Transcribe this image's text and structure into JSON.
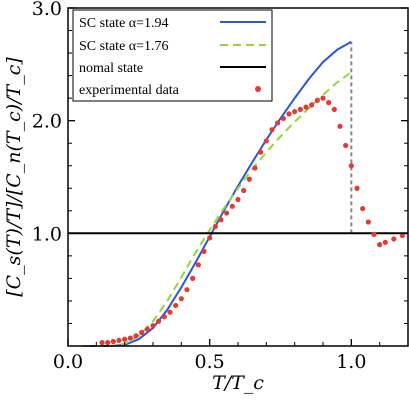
{
  "chart_data": {
    "type": "line",
    "xlabel": "T/T_c",
    "ylabel": "[C_s(T)/T]/[C_n(T_c)/T_c]",
    "xlim": [
      0.0,
      1.2
    ],
    "ylim": [
      0.0,
      3.0
    ],
    "x_ticks": [
      "0.0",
      "0.5",
      "1.0"
    ],
    "y_ticks": [
      "1.0",
      "2.0",
      "3.0"
    ],
    "legend_position": "top-left",
    "series": [
      {
        "name": "SC state α=1.94",
        "style": "solid",
        "color": "#2b55e0",
        "x": [
          0.05,
          0.15,
          0.2,
          0.25,
          0.3,
          0.35,
          0.4,
          0.45,
          0.5,
          0.55,
          0.6,
          0.65,
          0.7,
          0.75,
          0.8,
          0.85,
          0.9,
          0.95,
          1.0
        ],
        "y": [
          0.0,
          0.0,
          0.01,
          0.06,
          0.16,
          0.32,
          0.52,
          0.74,
          0.97,
          1.2,
          1.42,
          1.63,
          1.83,
          2.02,
          2.2,
          2.37,
          2.52,
          2.63,
          2.7
        ]
      },
      {
        "name": "SC state α=1.76",
        "style": "dashed",
        "color": "#8fd83a",
        "x": [
          0.05,
          0.15,
          0.2,
          0.25,
          0.3,
          0.35,
          0.4,
          0.45,
          0.5,
          0.55,
          0.6,
          0.65,
          0.7,
          0.75,
          0.8,
          0.85,
          0.9,
          0.95,
          1.0
        ],
        "y": [
          0.0,
          0.0,
          0.02,
          0.09,
          0.22,
          0.4,
          0.61,
          0.83,
          1.03,
          1.22,
          1.4,
          1.57,
          1.72,
          1.86,
          1.99,
          2.11,
          2.23,
          2.34,
          2.43
        ]
      },
      {
        "name": "nomal state",
        "style": "solid",
        "color": "#000000",
        "x": [
          0.0,
          1.2
        ],
        "y": [
          1.0,
          1.0
        ]
      },
      {
        "name": "experimental data",
        "style": "markers",
        "color": "#e53935",
        "x": [
          0.12,
          0.14,
          0.16,
          0.18,
          0.2,
          0.22,
          0.24,
          0.26,
          0.28,
          0.3,
          0.32,
          0.34,
          0.36,
          0.38,
          0.4,
          0.42,
          0.44,
          0.46,
          0.48,
          0.5,
          0.52,
          0.54,
          0.56,
          0.58,
          0.6,
          0.62,
          0.64,
          0.66,
          0.68,
          0.7,
          0.72,
          0.74,
          0.76,
          0.78,
          0.8,
          0.82,
          0.84,
          0.86,
          0.88,
          0.9,
          0.92,
          0.94,
          0.96,
          0.98,
          1.0,
          1.02,
          1.04,
          1.06,
          1.08,
          1.1,
          1.12,
          1.15,
          1.18
        ],
        "y": [
          0.03,
          0.03,
          0.04,
          0.05,
          0.06,
          0.07,
          0.09,
          0.12,
          0.15,
          0.18,
          0.22,
          0.26,
          0.3,
          0.36,
          0.42,
          0.5,
          0.6,
          0.72,
          0.84,
          0.96,
          1.06,
          1.12,
          1.18,
          1.24,
          1.3,
          1.38,
          1.48,
          1.58,
          1.72,
          1.82,
          1.92,
          1.98,
          2.02,
          2.06,
          2.08,
          2.1,
          2.12,
          2.14,
          2.18,
          2.2,
          2.16,
          2.1,
          1.95,
          1.78,
          1.6,
          1.4,
          1.22,
          1.1,
          0.99,
          0.9,
          0.92,
          0.95,
          0.98
        ]
      }
    ],
    "annotations": [
      {
        "type": "vertical-dashed",
        "x": 1.0,
        "y_from": 1.0,
        "y_to": 2.7,
        "color": "#888888"
      }
    ]
  }
}
